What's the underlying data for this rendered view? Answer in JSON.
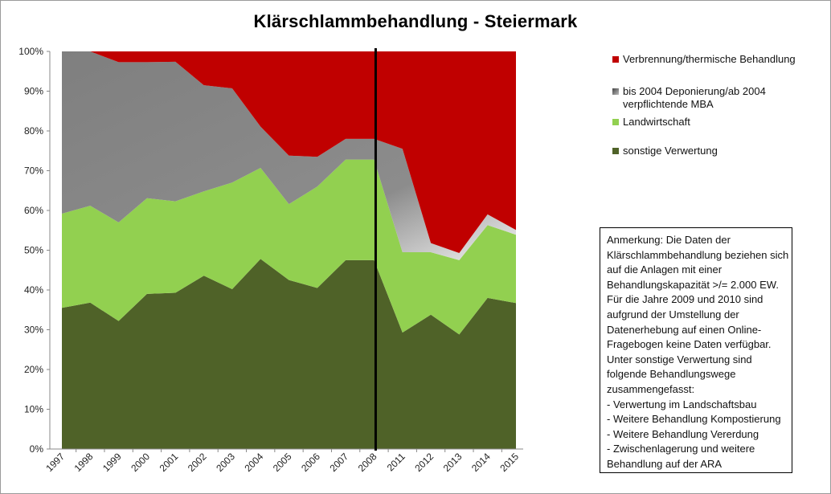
{
  "chart_data": {
    "type": "area",
    "title": "Klärschlammbehandlung - Steiermark",
    "stacked": true,
    "ylim": [
      0,
      100
    ],
    "y_ticks": [
      "0%",
      "10%",
      "20%",
      "30%",
      "40%",
      "50%",
      "60%",
      "70%",
      "80%",
      "90%",
      "100%"
    ],
    "categories": [
      "1997",
      "1998",
      "1999",
      "2000",
      "2001",
      "2002",
      "2003",
      "2004",
      "2005",
      "2006",
      "2007",
      "2008",
      "2011",
      "2012",
      "2013",
      "2014",
      "2015"
    ],
    "series": [
      {
        "name": "sonstige Verwertung",
        "color": "#4f6228",
        "values": [
          35.5,
          36.8,
          32.2,
          39.0,
          39.3,
          43.6,
          40.2,
          47.8,
          42.5,
          40.5,
          47.5,
          47.5,
          29.3,
          33.8,
          28.8,
          38.0,
          36.7
        ]
      },
      {
        "name": "Landwirtschaft",
        "color": "#92d050",
        "values": [
          23.7,
          24.4,
          24.8,
          24.1,
          23.0,
          21.2,
          26.8,
          22.9,
          19.1,
          25.5,
          25.3,
          25.3,
          20.2,
          15.7,
          18.7,
          18.3,
          17.2
        ]
      },
      {
        "name": "bis 2004 Deponierung/ab 2004 verpflichtende MBA",
        "color": "#808080",
        "values": [
          40.8,
          38.8,
          40.3,
          34.2,
          35.1,
          26.7,
          23.7,
          10.4,
          12.2,
          7.5,
          5.2,
          5.2,
          26.0,
          2.3,
          1.8,
          2.7,
          1.2
        ]
      },
      {
        "name": "Verbrennung/thermische Behandlung",
        "color": "#c00000",
        "values": [
          0.0,
          0.0,
          2.7,
          2.7,
          2.6,
          8.5,
          9.3,
          18.9,
          26.2,
          26.5,
          22.0,
          22.0,
          24.5,
          48.2,
          50.7,
          41.0,
          44.9
        ]
      }
    ],
    "marker_after_category": "2008",
    "grid": false,
    "legend_position": "right"
  },
  "note": {
    "lines": [
      "Anmerkung:  Die Daten der",
      "Klärschlammbehandlung beziehen sich",
      "auf die Anlagen mit einer",
      "Behandlungskapazität >/= 2.000 EW.",
      "Für die Jahre 2009 und 2010 sind",
      "aufgrund der Umstellung der",
      "Datenerhebung  auf einen Online-",
      "Fragebogen keine Daten verfügbar.",
      "Unter sonstige Verwertung  sind",
      "folgende Behandlungswege",
      "zusammengefasst:",
      "- Verwertung  im Landschaftsbau",
      "- Weitere Behandlung Kompostierung",
      "- Weitere Behandlung Vererdung",
      "- Zwischenlagerung und weitere",
      "Behandlung auf der ARA"
    ]
  }
}
